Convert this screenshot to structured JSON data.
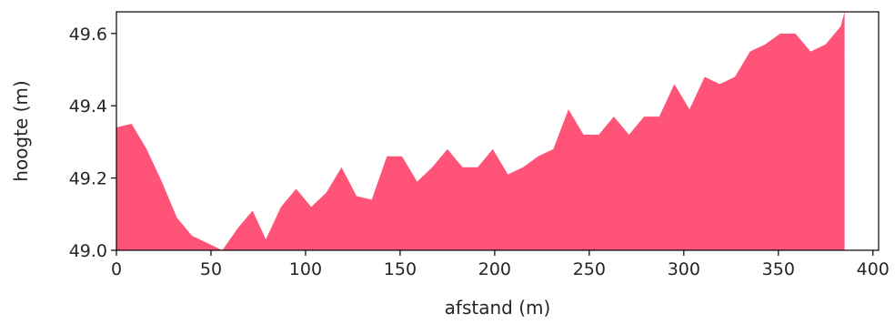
{
  "chart_data": {
    "type": "area",
    "title": "",
    "xlabel": "afstand (m)",
    "ylabel": "hoogte (m)",
    "xlim": [
      0,
      403
    ],
    "ylim": [
      49.0,
      49.66
    ],
    "xticks": [
      0,
      50,
      100,
      150,
      200,
      250,
      300,
      350,
      400
    ],
    "yticks": [
      49.0,
      49.2,
      49.4,
      49.6
    ],
    "ytick_labels": [
      "49.0",
      "49.2",
      "49.4",
      "49.6"
    ],
    "grid": false,
    "fill_color": "#ff5378",
    "series": [
      {
        "x": [
          0,
          8,
          16,
          24,
          32,
          40,
          48,
          56,
          64,
          72,
          79,
          87,
          95,
          103,
          111,
          119,
          127,
          135,
          143,
          151,
          159,
          167,
          175,
          183,
          191,
          199,
          207,
          215,
          223,
          231,
          239,
          247,
          255,
          263,
          271,
          279,
          287,
          295,
          303,
          311,
          319,
          327,
          335,
          343,
          351,
          359,
          367,
          375,
          383,
          385
        ],
        "y": [
          49.34,
          49.35,
          49.28,
          49.19,
          49.09,
          49.04,
          49.02,
          49.0,
          49.06,
          49.11,
          49.03,
          49.12,
          49.17,
          49.12,
          49.16,
          49.23,
          49.15,
          49.14,
          49.26,
          49.26,
          49.19,
          49.23,
          49.28,
          49.23,
          49.23,
          49.28,
          49.21,
          49.23,
          49.26,
          49.28,
          49.39,
          49.32,
          49.32,
          49.37,
          49.32,
          49.37,
          49.37,
          49.46,
          49.39,
          49.48,
          49.46,
          49.48,
          49.55,
          49.57,
          49.6,
          49.6,
          49.55,
          49.57,
          49.62,
          49.66
        ]
      }
    ]
  }
}
